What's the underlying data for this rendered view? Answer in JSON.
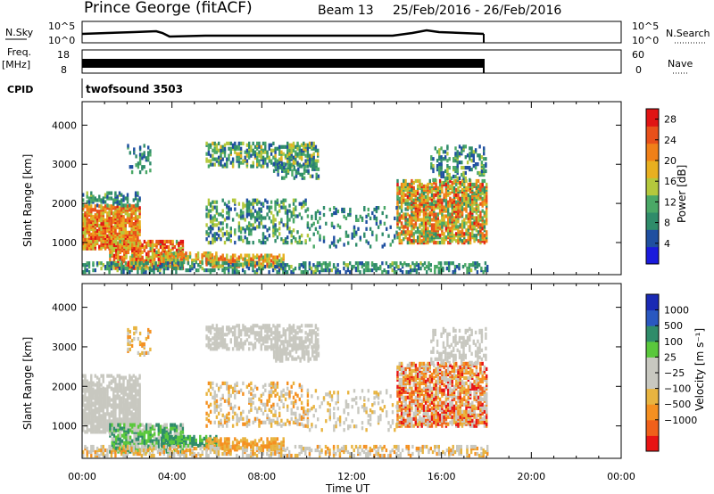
{
  "header": {
    "station": "Prince George (fitACF)",
    "beam": "Beam 13",
    "dates": "25/Feb/2016 - 26/Feb/2016"
  },
  "strips": {
    "nsky_label": "N.Sky",
    "nsky_ticks": [
      "10^5",
      "10^0"
    ],
    "nsearch_label": "N.Search",
    "nsearch_ticks": [
      "10^5",
      "10^0"
    ],
    "freq_label_1": "Freq.",
    "freq_label_2": "[MHz]",
    "freq_ticks": [
      "18",
      "8"
    ],
    "nave_label": "Nave",
    "nave_ticks": [
      "60",
      "0"
    ],
    "cpid_label": "CPID",
    "cpid_value": "twofsound 3503"
  },
  "colors": {
    "power": [
      "#1a1adc",
      "#1f4fa0",
      "#2f8c6a",
      "#4aa866",
      "#b4c83c",
      "#e8b020",
      "#f08018",
      "#e8501a",
      "#e01414"
    ],
    "velocity": [
      "#e81414",
      "#f0601a",
      "#f59020",
      "#e8b440",
      "#c8c8c0",
      "#c8c8c0",
      "#5ac83c",
      "#2f8c6a",
      "#2a58c0",
      "#1a2ab4"
    ]
  },
  "chart_data": [
    {
      "type": "heatmap",
      "name": "power",
      "ylabel": "Slant Range [km]",
      "xlabel": "Time UT",
      "x_ticks": [
        "00:00",
        "04:00",
        "08:00",
        "12:00",
        "16:00",
        "20:00",
        "00:00"
      ],
      "y_ticks": [
        "1000",
        "2000",
        "3000",
        "4000"
      ],
      "ylim": [
        180,
        4600
      ],
      "xlim_hours": [
        0,
        24
      ],
      "colorbar_label": "Power [dB]",
      "colorbar_ticks": [
        "4",
        "8",
        "12",
        "16",
        "20",
        "24",
        "28"
      ],
      "clim": [
        0,
        30
      ]
    },
    {
      "type": "heatmap",
      "name": "velocity",
      "ylabel": "Slant Range [km]",
      "xlabel": "Time UT",
      "x_ticks": [
        "00:00",
        "04:00",
        "08:00",
        "12:00",
        "16:00",
        "20:00",
        "00:00"
      ],
      "y_ticks": [
        "1000",
        "2000",
        "3000",
        "4000"
      ],
      "ylim": [
        180,
        4600
      ],
      "xlim_hours": [
        0,
        24
      ],
      "colorbar_label": "Velocity [m s⁻¹]",
      "colorbar_ticks": [
        "1000",
        "500",
        "100",
        "25",
        "−25",
        "−100",
        "−500",
        "−1000"
      ]
    }
  ]
}
